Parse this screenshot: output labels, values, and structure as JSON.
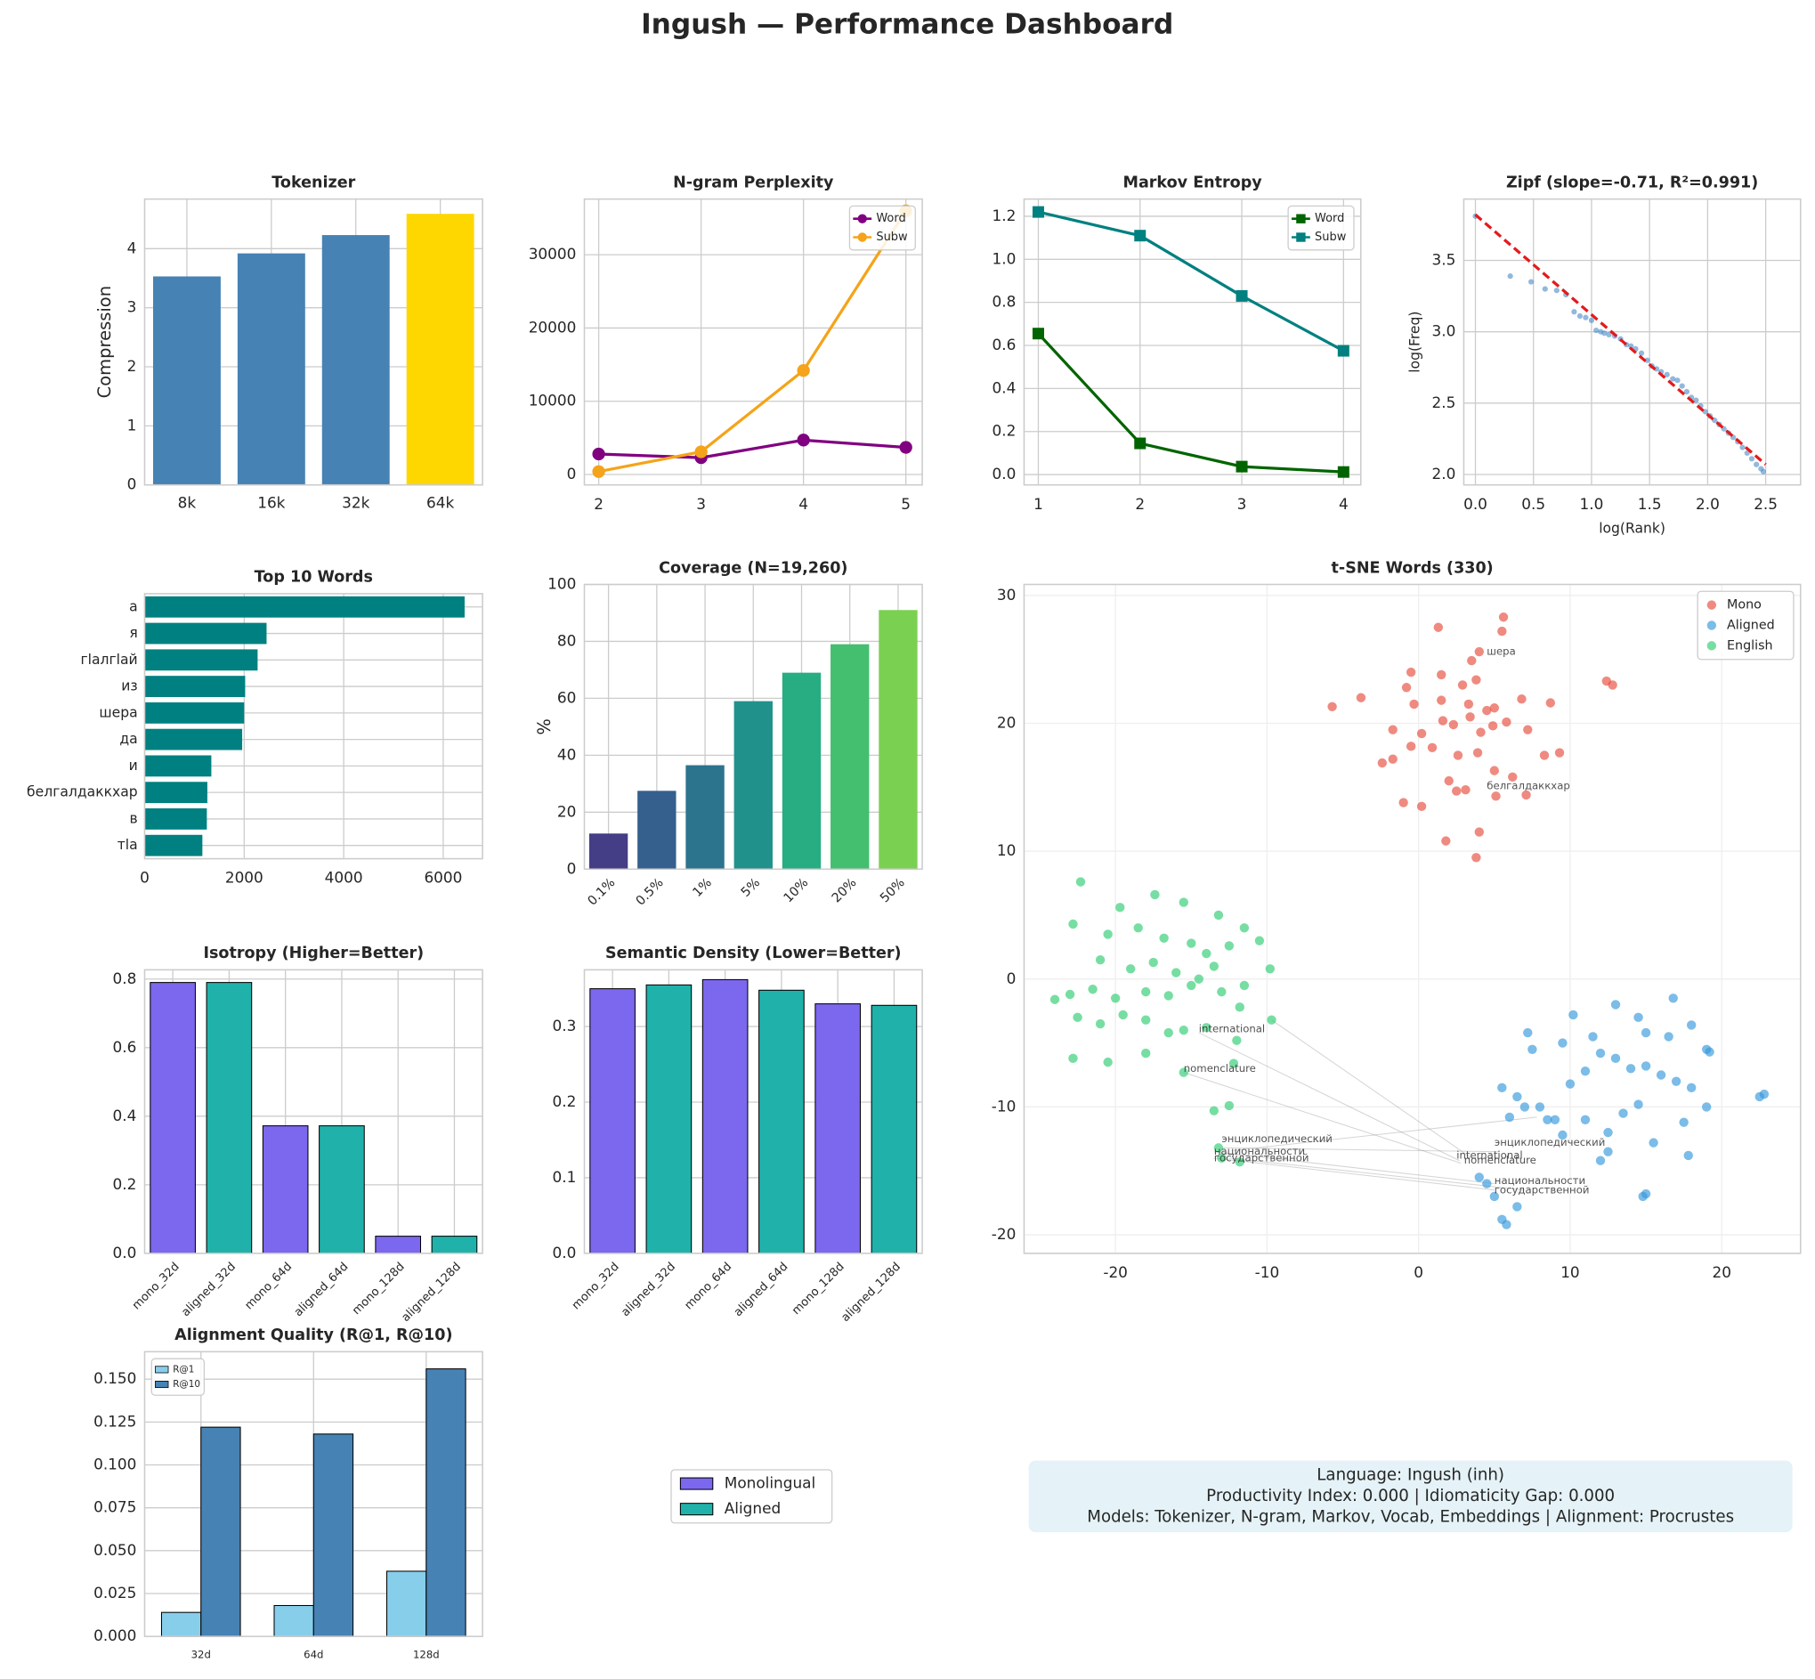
{
  "title": "Ingush — Performance Dashboard",
  "chart_data": [
    {
      "type": "bar",
      "title": "Tokenizer",
      "categories": [
        "8k",
        "16k",
        "32k",
        "64k"
      ],
      "values": [
        3.53,
        3.92,
        4.23,
        4.59
      ],
      "colors": [
        "#4682b4",
        "#4682b4",
        "#4682b4",
        "#ffd700"
      ],
      "ylabel": "Compression",
      "ylim": [
        0,
        4.84
      ],
      "yticks": [
        0,
        1,
        2,
        3,
        4
      ],
      "grid": true
    },
    {
      "type": "line",
      "title": "N-gram Perplexity",
      "xlim": [
        1.86,
        5.16
      ],
      "xticks": [
        2,
        3,
        4,
        5
      ],
      "ylim": [
        -1420,
        37600
      ],
      "yticks": [
        0,
        10000,
        20000,
        30000
      ],
      "grid": true,
      "legend": "upper right",
      "series": [
        {
          "name": "Word",
          "color": "#800080",
          "marker": "circle",
          "x": [
            2,
            3,
            4,
            5
          ],
          "values": [
            2800,
            2300,
            4700,
            3700
          ]
        },
        {
          "name": "Subw",
          "color": "#f5a31a",
          "marker": "circle",
          "x": [
            2,
            3,
            4,
            5
          ],
          "values": [
            400,
            3100,
            14200,
            36000
          ]
        }
      ]
    },
    {
      "type": "line",
      "title": "Markov Entropy",
      "xlim": [
        0.86,
        4.17
      ],
      "xticks": [
        1,
        2,
        3,
        4
      ],
      "ylim": [
        -0.048,
        1.28
      ],
      "yticks": [
        {
          "value": 0,
          "label": "0.0"
        },
        0.2,
        0.4,
        0.6,
        0.8,
        {
          "value": 1,
          "label": "1.0"
        },
        1.2
      ],
      "grid": true,
      "legend": "upper right",
      "series": [
        {
          "name": "Word",
          "color": "#006400",
          "marker": "square",
          "x": [
            1,
            2,
            3,
            4
          ],
          "values": [
            0.655,
            0.145,
            0.037,
            0.012
          ]
        },
        {
          "name": "Subw",
          "color": "#008080",
          "marker": "square",
          "x": [
            1,
            2,
            3,
            4
          ],
          "values": [
            1.22,
            1.11,
            0.83,
            0.575
          ]
        }
      ]
    },
    {
      "type": "scatter",
      "title": "Zipf (slope=-0.71, R²=0.991)",
      "xlabel": "log(Rank)",
      "ylabel": "log(Freq)",
      "xlim": [
        -0.1,
        2.8
      ],
      "xticks": [
        {
          "value": 0,
          "label": "0.0"
        },
        0.5,
        {
          "value": 1,
          "label": "1.0"
        },
        1.5,
        {
          "value": 2,
          "label": "2.0"
        },
        2.5
      ],
      "ylim": [
        1.927,
        3.93
      ],
      "yticks": [
        {
          "value": 2,
          "label": "2.0"
        },
        2.5,
        {
          "value": 3,
          "label": "3.0"
        },
        3.5
      ],
      "grid": true,
      "series": [
        {
          "color": "#4a8ac4",
          "x": [
            0,
            0.3,
            0.48,
            0.6,
            0.7,
            0.78,
            0.85,
            0.9,
            0.95,
            1.0,
            1.04,
            1.08,
            1.11,
            1.15,
            1.2,
            1.25,
            1.3,
            1.34,
            1.38,
            1.43,
            1.48,
            1.52,
            1.56,
            1.6,
            1.65,
            1.7,
            1.74,
            1.78,
            1.82,
            1.86,
            1.9,
            1.94,
            1.98,
            2.02,
            2.06,
            2.1,
            2.14,
            2.18,
            2.22,
            2.26,
            2.3,
            2.34,
            2.38,
            2.42,
            2.46,
            2.48
          ],
          "values": [
            3.81,
            3.39,
            3.35,
            3.3,
            3.29,
            3.26,
            3.14,
            3.11,
            3.1,
            3.08,
            3.01,
            3.0,
            2.99,
            2.98,
            2.97,
            2.95,
            2.91,
            2.9,
            2.88,
            2.85,
            2.8,
            2.76,
            2.74,
            2.72,
            2.7,
            2.67,
            2.66,
            2.62,
            2.58,
            2.54,
            2.52,
            2.48,
            2.44,
            2.41,
            2.38,
            2.35,
            2.32,
            2.29,
            2.26,
            2.23,
            2.19,
            2.15,
            2.11,
            2.07,
            2.04,
            2.02
          ]
        }
      ],
      "fit_line": {
        "color": "#e41a1c",
        "x": [
          0,
          2.5
        ],
        "values": [
          3.82,
          2.07
        ]
      }
    },
    {
      "type": "barh",
      "title": "Top 10 Words",
      "categories": [
        "а",
        "я",
        "гlалгlай",
        "из",
        "шера",
        "да",
        "и",
        "белгалдаккхар",
        "в",
        "тlа"
      ],
      "values": [
        6430,
        2450,
        2270,
        2020,
        2000,
        1960,
        1340,
        1260,
        1250,
        1160
      ],
      "color": "#008080",
      "xlim": [
        0,
        6790
      ],
      "xticks": [
        0,
        2000,
        4000,
        6000
      ],
      "grid": true
    },
    {
      "type": "bar",
      "title": "Coverage (N=19,260)",
      "categories": [
        "0.1%",
        "0.5%",
        "1%",
        "5%",
        "10%",
        "20%",
        "50%"
      ],
      "values": [
        12.5,
        27.5,
        36.5,
        59,
        69,
        79,
        91
      ],
      "colors": [
        "#433e85",
        "#355f8d",
        "#2c738e",
        "#21918c",
        "#27ad81",
        "#44bf70",
        "#7ad151"
      ],
      "ylabel": "%",
      "ylim": [
        0,
        100
      ],
      "yticks": [
        0,
        20,
        40,
        60,
        80,
        100
      ],
      "grid": true,
      "xtick_rotation": 45
    },
    {
      "type": "bar",
      "title": "Isotropy (Higher=Better)",
      "categories": [
        "mono_32d",
        "aligned_32d",
        "mono_64d",
        "aligned_64d",
        "mono_128d",
        "aligned_128d"
      ],
      "values": [
        0.79,
        0.79,
        0.372,
        0.372,
        0.05,
        0.05
      ],
      "colors": [
        "#7b68ee",
        "#20b2aa",
        "#7b68ee",
        "#20b2aa",
        "#7b68ee",
        "#20b2aa"
      ],
      "edgecolor": "#000000",
      "ylim": [
        0,
        0.827
      ],
      "yticks": [
        {
          "value": 0,
          "label": "0.0"
        },
        0.2,
        0.4,
        0.6,
        0.8
      ],
      "grid": true,
      "xtick_rotation": 45
    },
    {
      "type": "bar",
      "title": "Semantic Density (Lower=Better)",
      "categories": [
        "mono_32d",
        "aligned_32d",
        "mono_64d",
        "aligned_64d",
        "mono_128d",
        "aligned_128d"
      ],
      "values": [
        0.35,
        0.355,
        0.362,
        0.348,
        0.33,
        0.328
      ],
      "colors": [
        "#7b68ee",
        "#20b2aa",
        "#7b68ee",
        "#20b2aa",
        "#7b68ee",
        "#20b2aa"
      ],
      "edgecolor": "#000000",
      "ylim": [
        0,
        0.375
      ],
      "yticks": [
        {
          "value": 0,
          "label": "0.0"
        },
        0.1,
        0.2,
        0.3
      ],
      "grid": true,
      "xtick_rotation": 45
    },
    {
      "type": "bar",
      "title": "Alignment Quality (R@1, R@10)",
      "categories": [
        "32d",
        "64d",
        "128d"
      ],
      "edgecolor": "#000000",
      "ylim": [
        0,
        0.166
      ],
      "yticks": [
        {
          "value": 0,
          "label": "0.000"
        },
        {
          "value": 0.025,
          "label": "0.025"
        },
        {
          "value": 0.05,
          "label": "0.050"
        },
        {
          "value": 0.075,
          "label": "0.075"
        },
        {
          "value": 0.1,
          "label": "0.100"
        },
        {
          "value": 0.125,
          "label": "0.125"
        },
        {
          "value": 0.15,
          "label": "0.150"
        }
      ],
      "grid": true,
      "legend": "upper left",
      "series": [
        {
          "name": "R@1",
          "color": "#87ceeb",
          "values": [
            0.014,
            0.018,
            0.038
          ]
        },
        {
          "name": "R@10",
          "color": "#4682b4",
          "values": [
            0.122,
            0.118,
            0.156
          ]
        }
      ]
    },
    {
      "type": "scatter",
      "title": "t-SNE Words (330)",
      "xlim": [
        -26.03,
        25.2
      ],
      "xticks": [
        -20,
        -10,
        0,
        10,
        20
      ],
      "ylim": [
        -21.45,
        30.86
      ],
      "yticks": [
        -20,
        -10,
        0,
        10,
        20,
        30
      ],
      "grid": true,
      "legend": "upper right",
      "series": [
        {
          "name": "Mono",
          "color": "#e74c3c",
          "x": [
            1.3,
            1.5,
            5.6,
            5.5,
            4,
            3.5,
            3.8,
            -0.5,
            -0.8,
            2.9,
            1.5,
            3.3,
            4.5,
            5,
            6.8,
            -3.8,
            -5.7,
            -1.7,
            0.2,
            1.6,
            2.3,
            3.4,
            4.1,
            4.9,
            5.8,
            7.2,
            -2.4,
            -1.7,
            -0.5,
            0.9,
            2.6,
            3.9,
            5,
            8.3,
            9.3,
            12.4,
            12.8,
            -1,
            0.2,
            2.5,
            3.1,
            7.1,
            4,
            3.8,
            1.8,
            5.1,
            -0.3,
            8.7,
            6.2,
            2.0
          ],
          "values": [
            27.5,
            23.8,
            28.3,
            27.2,
            25.6,
            24.9,
            23.4,
            24,
            22.8,
            23,
            21.8,
            21.5,
            21,
            21.2,
            21.9,
            22,
            21.3,
            19.5,
            19.2,
            20.2,
            19.9,
            20.5,
            19.3,
            19.8,
            20.1,
            19.5,
            16.9,
            17.2,
            18.2,
            18.1,
            17.5,
            17.7,
            16.3,
            17.5,
            17.7,
            23.3,
            23,
            13.8,
            13.5,
            14.7,
            14.8,
            14.4,
            11.5,
            9.5,
            10.8,
            14.3,
            21.5,
            21.6,
            15.8,
            15.5
          ]
        },
        {
          "name": "Aligned",
          "color": "#3498db",
          "x": [
            5.5,
            7.2,
            7.5,
            9.5,
            10.2,
            11.5,
            13,
            14.5,
            15,
            16.5,
            16.8,
            18,
            19,
            19.2,
            22.5,
            22.8,
            6.5,
            8,
            9,
            10,
            11,
            12,
            13,
            14,
            15,
            16,
            17,
            18,
            6,
            7,
            8.5,
            9.5,
            11,
            12.5,
            13.5,
            14.5,
            17.5,
            19,
            12,
            14.8,
            15,
            5.5,
            5.8,
            4,
            4.5,
            5,
            6.5,
            12.5,
            15.5,
            17.8
          ],
          "values": [
            -8.5,
            -4.2,
            -5.5,
            -5,
            -2.8,
            -4.5,
            -2,
            -3,
            -4.2,
            -4.5,
            -1.5,
            -3.6,
            -5.5,
            -5.7,
            -9.2,
            -9,
            -9.2,
            -10,
            -11,
            -8.2,
            -7.2,
            -5.8,
            -6.2,
            -7,
            -6.8,
            -7.5,
            -8,
            -8.5,
            -10.8,
            -10,
            -11,
            -12.2,
            -11,
            -12,
            -10.5,
            -9.8,
            -11.2,
            -10,
            -14.2,
            -17,
            -16.8,
            -18.8,
            -19.2,
            -15.5,
            -16,
            -17,
            -17.8,
            -13.5,
            -12.8,
            -13.8
          ]
        },
        {
          "name": "English",
          "color": "#2ecc71",
          "x": [
            -22.3,
            -22.8,
            -19.7,
            -17.4,
            -15.5,
            -13.2,
            -11.5,
            -20.5,
            -18.5,
            -16.8,
            -15,
            -14,
            -12.5,
            -10.5,
            -21,
            -19,
            -17.5,
            -16,
            -14.5,
            -13.5,
            -11.5,
            -9.8,
            -24,
            -23,
            -21.5,
            -20,
            -18,
            -16.5,
            -15,
            -13,
            -11.8,
            -9.7,
            -22.5,
            -21,
            -19.5,
            -18,
            -16.5,
            -15.5,
            -14,
            -12,
            -22.8,
            -20.5,
            -18,
            -15.5,
            -12.2,
            -13.5,
            -13.2,
            -12.5,
            -13,
            -11.8
          ],
          "values": [
            7.6,
            4.3,
            5.6,
            6.6,
            6,
            5,
            4,
            3.5,
            4,
            3.2,
            2.8,
            2,
            2.6,
            3,
            1.5,
            0.8,
            1.3,
            0.5,
            0,
            1,
            -0.5,
            0.8,
            -1.6,
            -1.2,
            -0.8,
            -1.5,
            -1,
            -1.3,
            -0.5,
            -1,
            -2.2,
            -3.2,
            -3,
            -3.5,
            -2.8,
            -3.2,
            -4.2,
            -4,
            -3.8,
            -4.8,
            -6.2,
            -6.5,
            -5.8,
            -7.3,
            -6.6,
            -10.3,
            -13.2,
            -9.9,
            -14,
            -14.3
          ]
        }
      ],
      "annotations": [
        {
          "text": "шера",
          "series": 0,
          "x": 4.5,
          "y": 25.6
        },
        {
          "text": "белгалдаккхар",
          "series": 0,
          "x": 4.5,
          "y": 15.1
        },
        {
          "text": "international",
          "series": 2,
          "x": -14.5,
          "y": -3.9
        },
        {
          "text": "nomenclature",
          "series": 2,
          "x": -15.5,
          "y": -7
        },
        {
          "text": "энциклопедический",
          "series": 2,
          "x": -13,
          "y": -12.5
        },
        {
          "text": "национальности",
          "series": 2,
          "x": -13.5,
          "y": -13.5
        },
        {
          "text": "государственной",
          "series": 2,
          "x": -13.5,
          "y": -14
        },
        {
          "text": "энциклопедический",
          "series": 1,
          "x": 5,
          "y": -12.8
        },
        {
          "text": "international",
          "series": 1,
          "x": 2.5,
          "y": -13.8
        },
        {
          "text": "nomenclature",
          "series": 1,
          "x": 3,
          "y": -14.2
        },
        {
          "text": "национальности",
          "series": 1,
          "x": 5,
          "y": -15.8
        },
        {
          "text": "государственной",
          "series": 1,
          "x": 5,
          "y": -16.5
        }
      ],
      "links": [
        [
          -14.5,
          -4.2,
          2.7,
          -14.2
        ],
        [
          -15.5,
          -7.3,
          2.8,
          -14.4
        ],
        [
          -13,
          -13.2,
          5.3,
          -13.5
        ],
        [
          -13.5,
          -13.5,
          5,
          -16
        ],
        [
          -13.5,
          -14,
          5,
          -16.5
        ],
        [
          -12.5,
          -14,
          7,
          -16.5
        ],
        [
          -9.7,
          -3.2,
          3.5,
          -14
        ],
        [
          -12.2,
          -13.4,
          7.8,
          -10.8
        ]
      ]
    }
  ],
  "shared_legend": [
    {
      "name": "Monolingual",
      "color": "#7b68ee"
    },
    {
      "name": "Aligned",
      "color": "#20b2aa"
    }
  ],
  "info_lines": [
    "Language: Ingush (inh)",
    "Productivity Index: 0.000  |  Idiomaticity Gap: 0.000",
    "Models: Tokenizer, N-gram, Markov, Vocab, Embeddings  |  Alignment: Procrustes"
  ]
}
